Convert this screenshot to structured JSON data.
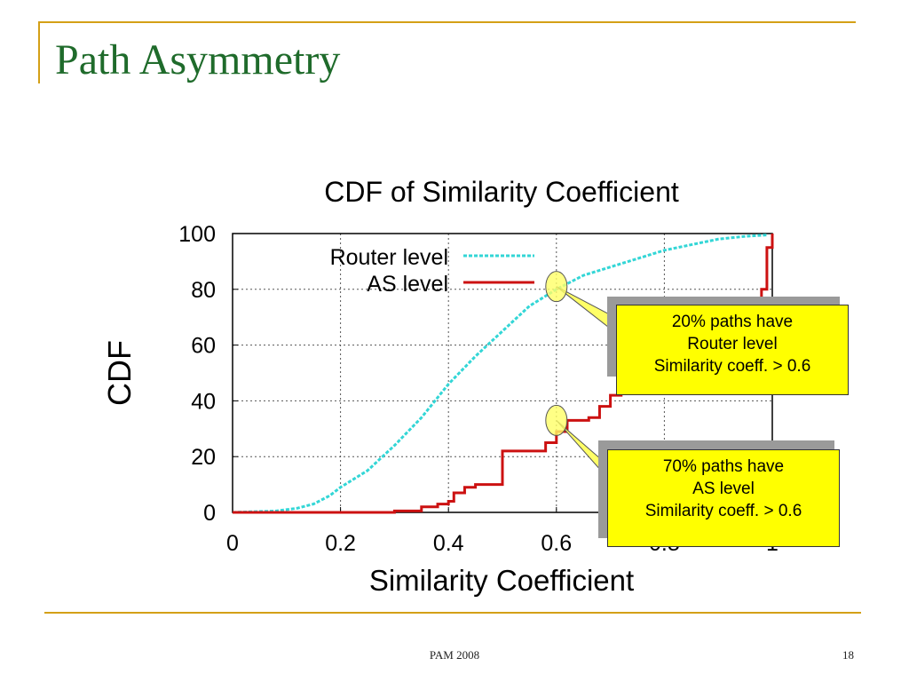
{
  "slide": {
    "title": "Path Asymmetry",
    "footer": "PAM 2008",
    "page_number": "18"
  },
  "colors": {
    "accent": "#d4a017",
    "title": "#1f6b2b",
    "router": "#33d6d6",
    "as": "#cc1111",
    "callout": "#ffff00"
  },
  "chart_data": {
    "type": "line",
    "title": "CDF of Similarity Coefficient",
    "xlabel": "Similarity Coefficient",
    "ylabel": "CDF",
    "xlim": [
      0,
      1
    ],
    "ylim": [
      0,
      100
    ],
    "xticks": [
      "0",
      "0.2",
      "0.4",
      "0.6",
      "0.8",
      "1"
    ],
    "yticks": [
      "0",
      "20",
      "40",
      "60",
      "80",
      "100"
    ],
    "grid": true,
    "legend_position": "top-left",
    "series": [
      {
        "name": "Router level",
        "style": "dashed",
        "x": [
          0,
          0.08,
          0.12,
          0.15,
          0.18,
          0.2,
          0.25,
          0.3,
          0.35,
          0.4,
          0.45,
          0.5,
          0.55,
          0.6,
          0.65,
          0.7,
          0.75,
          0.8,
          0.85,
          0.9,
          0.95,
          0.99
        ],
        "y": [
          0,
          0.5,
          1.5,
          3,
          6,
          9,
          15,
          24,
          34,
          46,
          56,
          65,
          74,
          80,
          85,
          88,
          91,
          94,
          96,
          98,
          99,
          99.5
        ]
      },
      {
        "name": "AS level",
        "style": "step",
        "x": [
          0,
          0.3,
          0.35,
          0.38,
          0.4,
          0.41,
          0.43,
          0.45,
          0.48,
          0.5,
          0.52,
          0.55,
          0.58,
          0.6,
          0.62,
          0.65,
          0.66,
          0.68,
          0.7,
          0.72,
          0.75,
          0.8,
          0.85,
          0.9,
          0.95,
          0.98,
          0.99,
          1.0
        ],
        "y": [
          0,
          0.5,
          2,
          3,
          4,
          7,
          9,
          10,
          10,
          22,
          22,
          22,
          25,
          29,
          33,
          33,
          34,
          38,
          42,
          45,
          48,
          52,
          55,
          60,
          70,
          80,
          95,
          100
        ]
      }
    ],
    "annotations": [
      {
        "text_lines": [
          "20% paths have",
          "Router level",
          "Similarity coeff. > 0.6"
        ],
        "target": {
          "x": 0.6,
          "y": 81
        }
      },
      {
        "text_lines": [
          "70% paths have",
          "AS level",
          "Similarity coeff. > 0.6"
        ],
        "target": {
          "x": 0.6,
          "y": 33
        }
      }
    ]
  }
}
